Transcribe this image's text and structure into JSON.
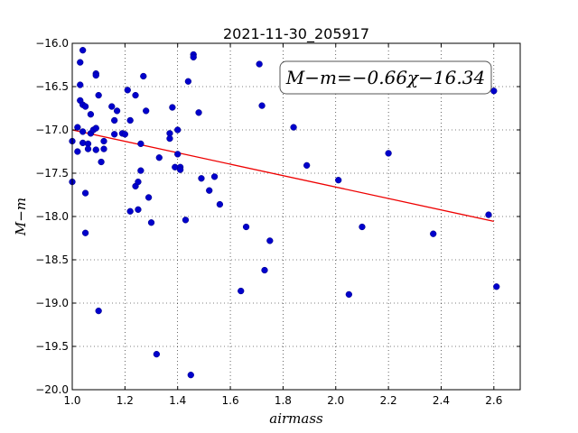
{
  "chart_data": {
    "type": "scatter",
    "title": "2021-11-30_205917",
    "xlabel": "airmass",
    "ylabel": "M−m",
    "xlim": [
      1.0,
      2.7
    ],
    "ylim": [
      -20.0,
      -16.0
    ],
    "xticks": [
      "1.0",
      "1.2",
      "1.4",
      "1.6",
      "1.8",
      "2.0",
      "2.2",
      "2.4",
      "2.6"
    ],
    "yticks": [
      "−16.0",
      "−16.5",
      "−17.0",
      "−17.5",
      "−18.0",
      "−18.5",
      "−19.0",
      "−19.5",
      "−20.0"
    ],
    "grid": true,
    "annotation": "M−m=−0.66χ−16.34",
    "fit_line": {
      "slope": -0.66,
      "intercept": -16.34,
      "x": [
        1.0,
        2.6
      ]
    },
    "points": {
      "x": [
        1.0,
        1.0,
        1.02,
        1.02,
        1.03,
        1.03,
        1.03,
        1.04,
        1.04,
        1.04,
        1.04,
        1.05,
        1.05,
        1.05,
        1.06,
        1.06,
        1.07,
        1.07,
        1.08,
        1.09,
        1.09,
        1.09,
        1.09,
        1.1,
        1.1,
        1.11,
        1.12,
        1.12,
        1.15,
        1.16,
        1.16,
        1.17,
        1.19,
        1.2,
        1.21,
        1.22,
        1.22,
        1.24,
        1.24,
        1.25,
        1.25,
        1.26,
        1.26,
        1.27,
        1.28,
        1.29,
        1.3,
        1.32,
        1.33,
        1.37,
        1.37,
        1.38,
        1.39,
        1.4,
        1.4,
        1.41,
        1.41,
        1.43,
        1.44,
        1.45,
        1.46,
        1.46,
        1.48,
        1.49,
        1.52,
        1.54,
        1.56,
        1.64,
        1.66,
        1.71,
        1.72,
        1.73,
        1.75,
        1.84,
        1.89,
        2.01,
        2.05,
        2.1,
        2.2,
        2.37,
        2.58,
        2.6,
        2.61
      ],
      "y": [
        -17.13,
        -17.6,
        -17.25,
        -16.97,
        -16.22,
        -16.48,
        -16.66,
        -16.71,
        -16.08,
        -17.02,
        -17.15,
        -17.73,
        -18.19,
        -16.73,
        -17.16,
        -17.22,
        -17.04,
        -16.82,
        -17.0,
        -16.35,
        -16.37,
        -16.98,
        -17.23,
        -19.09,
        -16.6,
        -17.37,
        -17.22,
        -17.13,
        -16.73,
        -16.89,
        -17.05,
        -16.78,
        -17.04,
        -17.05,
        -16.54,
        -17.94,
        -16.89,
        -17.65,
        -16.6,
        -17.6,
        -17.92,
        -17.47,
        -17.16,
        -16.38,
        -16.78,
        -17.78,
        -18.07,
        -19.59,
        -17.32,
        -17.04,
        -17.1,
        -16.74,
        -17.43,
        -17.28,
        -17.0,
        -17.43,
        -17.46,
        -18.04,
        -16.44,
        -19.83,
        -16.13,
        -16.16,
        -16.8,
        -17.56,
        -17.7,
        -17.54,
        -17.86,
        -18.86,
        -18.12,
        -16.24,
        -16.72,
        -18.62,
        -18.28,
        -16.97,
        -17.41,
        -17.58,
        -18.9,
        -18.12,
        -17.27,
        -18.2,
        -17.98,
        -16.55,
        -18.81
      ]
    }
  }
}
